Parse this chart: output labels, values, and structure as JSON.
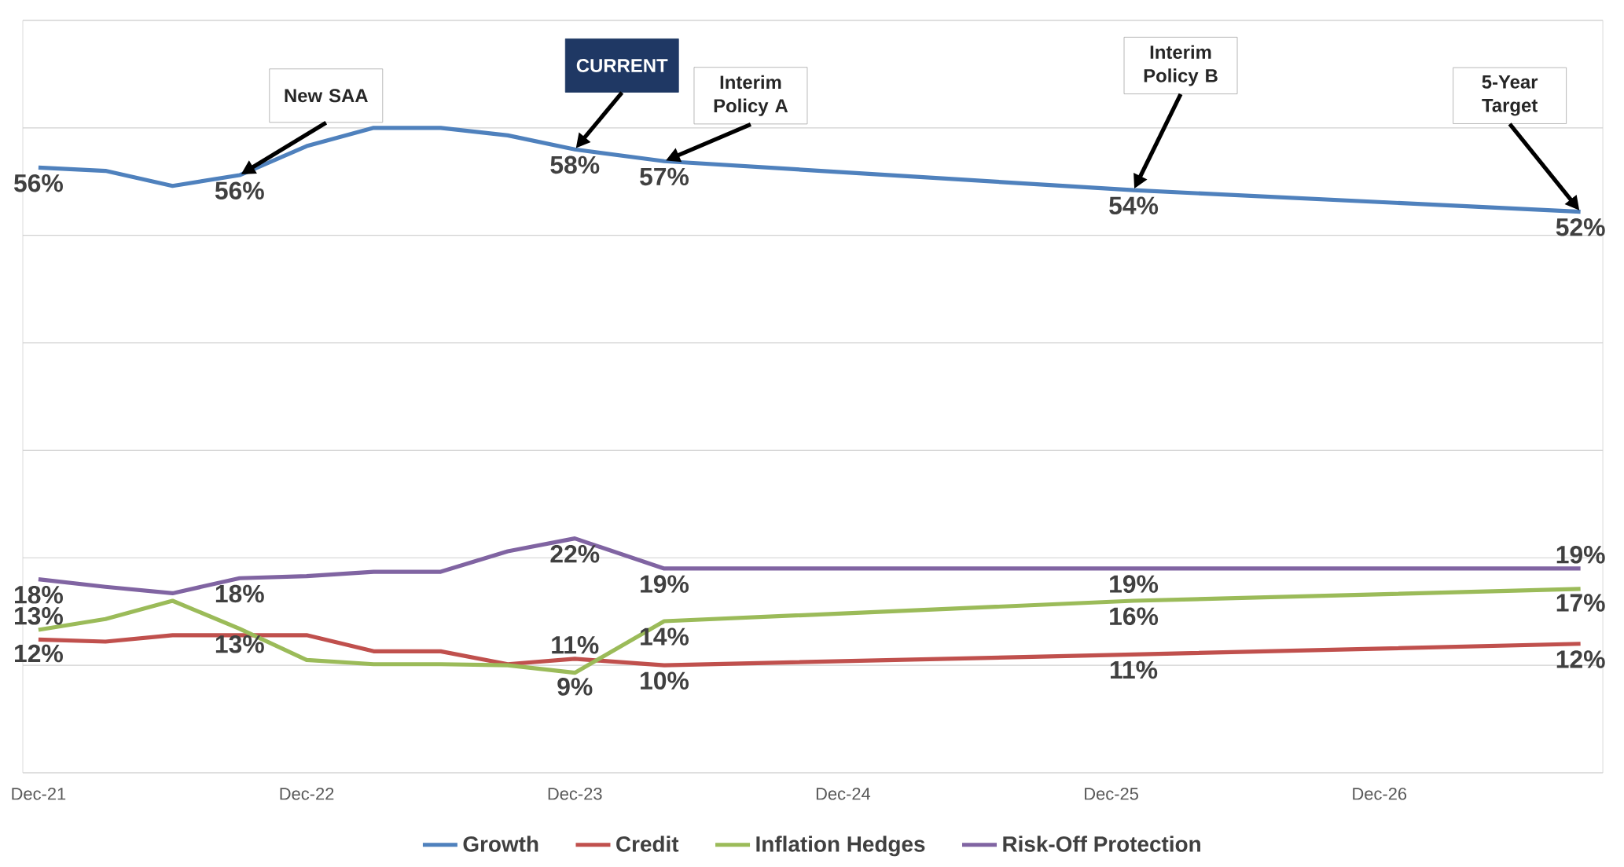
{
  "chart_data": {
    "type": "line",
    "x": [
      "2021-12",
      "2022-03",
      "2022-06",
      "2022-09",
      "2022-12",
      "2023-03",
      "2023-06",
      "2023-09",
      "2023-12",
      "2024-04",
      "2026-01",
      "2027-09"
    ],
    "series": [
      {
        "name": "Growth",
        "color": "#4f81bd",
        "values": [
          56.3,
          56.0,
          54.6,
          55.6,
          58.3,
          60.0,
          60.0,
          59.3,
          58.0,
          56.9,
          54.2,
          52.2
        ],
        "value_labels": [
          "56%",
          null,
          null,
          "56%",
          null,
          null,
          null,
          null,
          "58%",
          "57%",
          "54%",
          "52%"
        ]
      },
      {
        "name": "Credit",
        "color": "#c0504d",
        "values": [
          12.4,
          12.2,
          12.8,
          12.8,
          12.8,
          11.3,
          11.3,
          10.1,
          10.6,
          10.0,
          11.0,
          12.0
        ],
        "value_labels": [
          "12%",
          null,
          null,
          null,
          null,
          null,
          null,
          null,
          "11%",
          "10%",
          "11%",
          "12%"
        ]
      },
      {
        "name": "Inflation Hedges",
        "color": "#9bbb59",
        "values": [
          13.3,
          14.3,
          16.0,
          13.4,
          10.5,
          10.1,
          10.1,
          10.0,
          9.3,
          14.1,
          16.0,
          17.1
        ],
        "value_labels": [
          "13%",
          null,
          null,
          "13%",
          null,
          null,
          null,
          null,
          "9%",
          "14%",
          "16%",
          "17%"
        ]
      },
      {
        "name": "Risk-Off Protection",
        "color": "#8064a2",
        "values": [
          18.0,
          17.3,
          16.7,
          18.1,
          18.3,
          18.7,
          18.7,
          20.6,
          21.8,
          19.0,
          19.0,
          19.0
        ],
        "value_labels": [
          "18%",
          null,
          null,
          "18%",
          null,
          null,
          null,
          null,
          "22%",
          "19%",
          "19%",
          "19%"
        ]
      }
    ],
    "xlim": [
      "2021-11-10",
      "2027-10"
    ],
    "xticks": [
      {
        "value": "2021-12",
        "label": "Dec-21"
      },
      {
        "value": "2022-12",
        "label": "Dec-22"
      },
      {
        "value": "2023-12",
        "label": "Dec-23"
      },
      {
        "value": "2024-12",
        "label": "Dec-24"
      },
      {
        "value": "2025-12",
        "label": "Dec-25"
      },
      {
        "value": "2026-12",
        "label": "Dec-26"
      }
    ],
    "ylim": [
      0,
      70
    ],
    "yticks": [
      {
        "value": 0,
        "label": null
      },
      {
        "value": 10,
        "label": null
      },
      {
        "value": 20,
        "label": null
      },
      {
        "value": 30,
        "label": null
      },
      {
        "value": 40,
        "label": null
      },
      {
        "value": 50,
        "label": null
      },
      {
        "value": 60,
        "label": null
      },
      {
        "value": 70,
        "label": null
      }
    ],
    "tick_labels": "x",
    "grid": "y",
    "legend": "bottom",
    "annotations": [
      "New SAA",
      "CURRENT",
      "Interim Policy A",
      "Interim Policy B",
      "5-Year Target"
    ]
  }
}
